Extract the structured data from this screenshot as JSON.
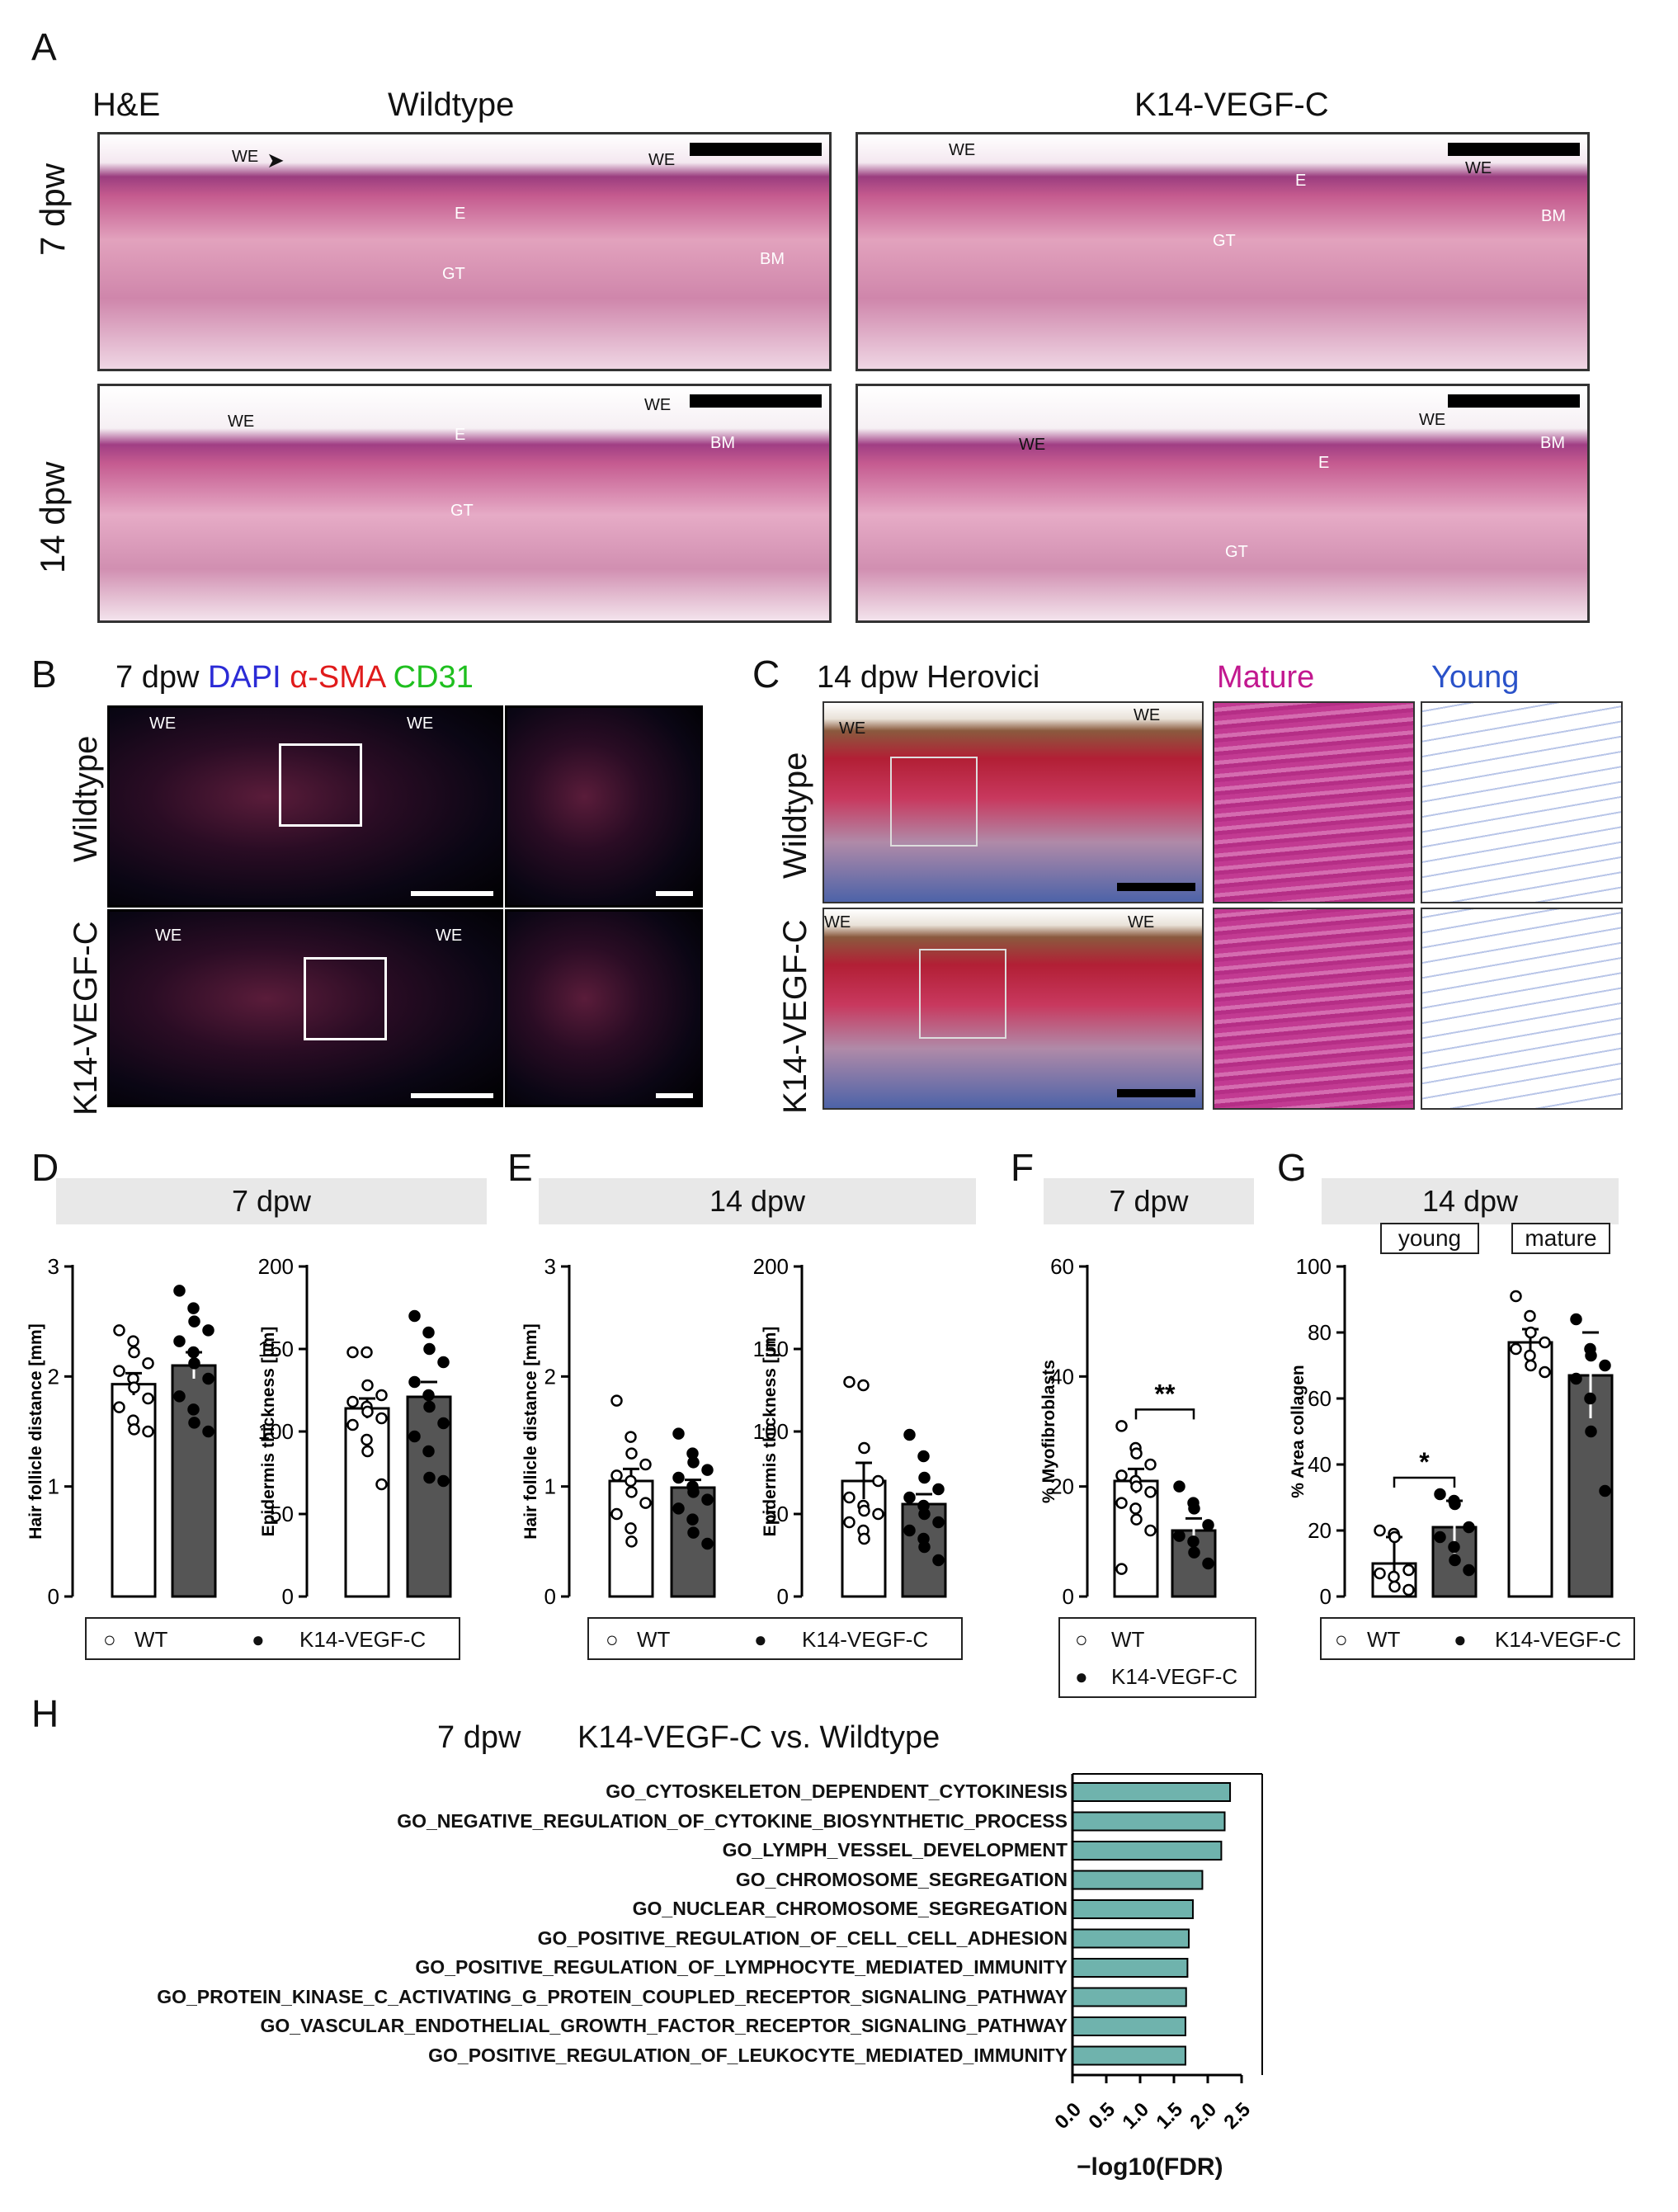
{
  "panels": {
    "A": "A",
    "B": "B",
    "C": "C",
    "D": "D",
    "E": "E",
    "F": "F",
    "G": "G",
    "H": "H"
  },
  "a": {
    "stain": "H&E",
    "col_wt": "Wildtype",
    "col_k14": "K14-VEGF-C",
    "row_7": "7 dpw",
    "row_14": "14 dpw",
    "we": "WE",
    "e": "E",
    "gt": "GT",
    "bm": "BM"
  },
  "b": {
    "timepoint": "7 dpw",
    "dapi": "DAPI",
    "asma": "α-SMA",
    "cd31": "CD31",
    "row_wt": "Wildtype",
    "row_k14": "K14-VEGF-C",
    "we": "WE",
    "colors": {
      "dapi": "#2b2bd6",
      "asma": "#e01b1b",
      "cd31": "#1fbf1f"
    }
  },
  "c": {
    "title": "14 dpw Herovici",
    "mature": "Mature",
    "young": "Young",
    "row_wt": "Wildtype",
    "row_k14": "K14-VEGF-C",
    "we": "WE",
    "colors": {
      "mature": "#c2188f",
      "young": "#2a52c9"
    }
  },
  "legend": {
    "wt": "WT",
    "k14": "K14-VEGF-C"
  },
  "chart_data": [
    {
      "panel": "D",
      "header": "7 dpw",
      "type": "bar",
      "ylabel": "Hair follicle distance [mm]",
      "ylim": [
        0,
        3
      ],
      "yticks": [
        0,
        1,
        2,
        3
      ],
      "categories": [
        "WT",
        "K14-VEGF-C"
      ],
      "values": [
        1.93,
        2.1
      ],
      "errors": [
        0.1,
        0.12
      ],
      "points": [
        [
          2.42,
          2.32,
          2.22,
          2.12,
          2.05,
          1.98,
          1.9,
          1.8,
          1.72,
          1.6,
          1.52,
          1.5
        ],
        [
          2.78,
          2.62,
          2.5,
          2.42,
          2.32,
          2.22,
          2.12,
          1.98,
          1.82,
          1.7,
          1.58,
          1.5
        ]
      ]
    },
    {
      "panel": "D",
      "type": "bar",
      "ylabel": "Epidermis thickness [µm]",
      "ylim": [
        0,
        200
      ],
      "yticks": [
        0,
        50,
        100,
        150,
        200
      ],
      "categories": [
        "WT",
        "K14-VEGF-C"
      ],
      "values": [
        114,
        121
      ],
      "errors": [
        6,
        9
      ],
      "points": [
        [
          148,
          148,
          128,
          122,
          118,
          115,
          112,
          108,
          104,
          95,
          88,
          68
        ],
        [
          170,
          160,
          150,
          142,
          130,
          122,
          115,
          105,
          97,
          88,
          72,
          70
        ]
      ]
    },
    {
      "panel": "E",
      "header": "14 dpw",
      "type": "bar",
      "ylabel": "Hair follicle distance [mm]",
      "ylim": [
        0,
        3
      ],
      "yticks": [
        0,
        1,
        2,
        3
      ],
      "categories": [
        "WT",
        "K14-VEGF-C"
      ],
      "values": [
        1.05,
        0.99
      ],
      "errors": [
        0.11,
        0.07
      ],
      "points": [
        [
          1.78,
          1.45,
          1.3,
          1.2,
          1.1,
          1.05,
          0.95,
          0.85,
          0.75,
          0.62,
          0.5
        ],
        [
          1.48,
          1.3,
          1.22,
          1.15,
          1.08,
          1.0,
          0.95,
          0.88,
          0.8,
          0.7,
          0.58,
          0.48
        ]
      ]
    },
    {
      "panel": "E",
      "type": "bar",
      "ylabel": "Epidermis thickness [µm]",
      "ylim": [
        0,
        200
      ],
      "yticks": [
        0,
        50,
        100,
        150,
        200
      ],
      "categories": [
        "WT",
        "K14-VEGF-C"
      ],
      "values": [
        70,
        56
      ],
      "errors": [
        11,
        6
      ],
      "points": [
        [
          130,
          128,
          90,
          70,
          60,
          55,
          52,
          50,
          45,
          40,
          35
        ],
        [
          98,
          85,
          72,
          65,
          60,
          55,
          50,
          45,
          40,
          35,
          30,
          22
        ]
      ]
    },
    {
      "panel": "F",
      "header": "7 dpw",
      "type": "bar",
      "ylabel": "% Myofibroblasts",
      "ylim": [
        0,
        60
      ],
      "yticks": [
        0,
        20,
        40,
        60
      ],
      "categories": [
        "WT",
        "K14-VEGF-C"
      ],
      "values": [
        21,
        12
      ],
      "errors": [
        2.2,
        2.2
      ],
      "points": [
        [
          31,
          27,
          26,
          24,
          22,
          21,
          20,
          19,
          17,
          16,
          14,
          12,
          5
        ],
        [
          20,
          17,
          16,
          13,
          11,
          10,
          8,
          6
        ]
      ],
      "significance": "**"
    },
    {
      "panel": "G",
      "header": "14 dpw",
      "type": "bar",
      "ylabel": "% Area collagen",
      "ylim": [
        0,
        100
      ],
      "yticks": [
        0,
        20,
        40,
        60,
        80,
        100
      ],
      "groups": [
        "young",
        "mature"
      ],
      "categories": [
        "WT",
        "K14-VEGF-C",
        "WT",
        "K14-VEGF-C"
      ],
      "values": [
        10,
        21,
        77,
        67
      ],
      "errors": [
        8,
        8,
        4,
        13
      ],
      "points": [
        [
          20,
          19,
          18,
          8,
          7,
          6,
          3,
          2
        ],
        [
          31,
          29,
          28,
          21,
          18,
          15,
          11,
          8
        ],
        [
          91,
          85,
          80,
          77,
          75,
          73,
          70,
          68
        ],
        [
          84,
          75,
          73,
          70,
          66,
          60,
          50,
          32
        ]
      ],
      "significance": "*"
    },
    {
      "panel": "H",
      "type": "bar",
      "title": "K14-VEGF-C vs. Wildtype",
      "subtitle": "7 dpw",
      "xlabel": "−log10(FDR)",
      "xlim": [
        0,
        2.5
      ],
      "xticks": [
        "0.0",
        "0.5",
        "1.0",
        "1.5",
        "2.0",
        "2.5"
      ],
      "categories": [
        "GO_CYTOSKELETON_DEPENDENT_CYTOKINESIS",
        "GO_NEGATIVE_REGULATION_OF_CYTOKINE_BIOSYNTHETIC_PROCESS",
        "GO_LYMPH_VESSEL_DEVELOPMENT",
        "GO_CHROMOSOME_SEGREGATION",
        "GO_NUCLEAR_CHROMOSOME_SEGREGATION",
        "GO_POSITIVE_REGULATION_OF_CELL_CELL_ADHESION",
        "GO_POSITIVE_REGULATION_OF_LYMPHOCYTE_MEDIATED_IMMUNITY",
        "GO_PROTEIN_KINASE_C_ACTIVATING_G_PROTEIN_COUPLED_RECEPTOR_SIGNALING_PATHWAY",
        "GO_VASCULAR_ENDOTHELIAL_GROWTH_FACTOR_RECEPTOR_SIGNALING_PATHWAY",
        "GO_POSITIVE_REGULATION_OF_LEUKOCYTE_MEDIATED_IMMUNITY"
      ],
      "values": [
        2.33,
        2.25,
        2.2,
        1.92,
        1.78,
        1.72,
        1.7,
        1.68,
        1.67,
        1.67
      ],
      "bar_color": "#6fb3ad"
    }
  ]
}
